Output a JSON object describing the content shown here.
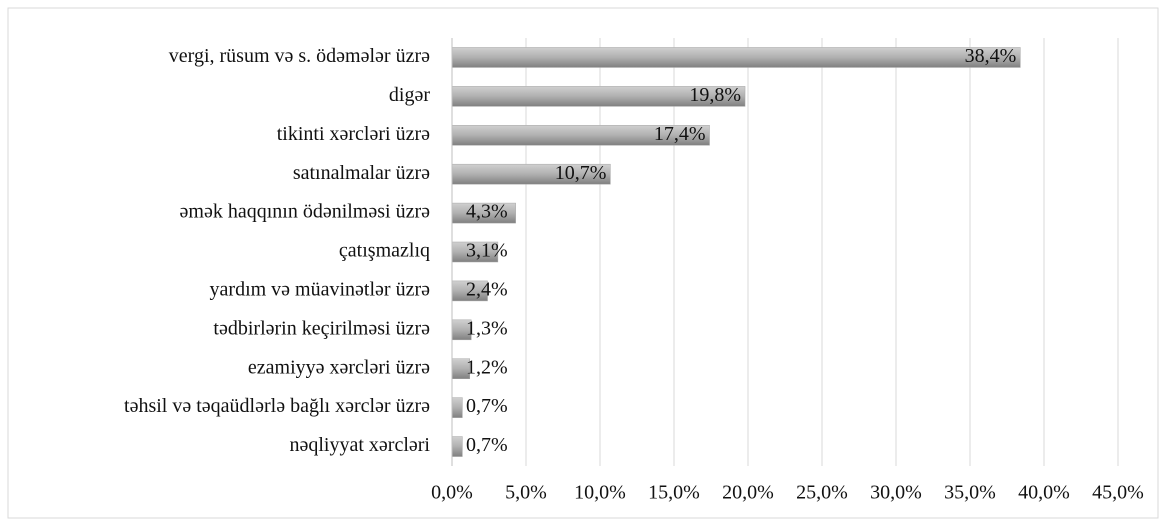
{
  "chart_data": {
    "type": "bar",
    "orientation": "horizontal",
    "categories": [
      "vergi, rüsum və s. ödəmələr üzrə",
      "digər",
      "tikinti xərcləri üzrə",
      "satınalmalar üzrə",
      "əmək haqqının ödənilməsi üzrə",
      "çatışmazlıq",
      "yardım və müavinətlər üzrə",
      "tədbirlərin keçirilməsi üzrə",
      "ezamiyyə xərcləri üzrə",
      "təhsil və təqaüdlərlə bağlı xərclər üzrə",
      "nəqliyyat xərcləri"
    ],
    "values": [
      38.4,
      19.8,
      17.4,
      10.7,
      4.3,
      3.1,
      2.4,
      1.3,
      1.2,
      0.7,
      0.7
    ],
    "value_labels": [
      "38,4%",
      "19,8%",
      "17,4%",
      "10,7%",
      "4,3%",
      "3,1%",
      "2,4%",
      "1,3%",
      "1,2%",
      "0,7%",
      "0,7%"
    ],
    "color": "#a6a6a6",
    "xlim": [
      0,
      45
    ],
    "xticks": [
      {
        "value": 0,
        "label": "0,0%"
      },
      {
        "value": 5,
        "label": "5,0%"
      },
      {
        "value": 10,
        "label": "10,0%"
      },
      {
        "value": 15,
        "label": "15,0%"
      },
      {
        "value": 20,
        "label": "20,0%"
      },
      {
        "value": 25,
        "label": "25,0%"
      },
      {
        "value": 30,
        "label": "30,0%"
      },
      {
        "value": 35,
        "label": "35,0%"
      },
      {
        "value": 40,
        "label": "40,0%"
      },
      {
        "value": 45,
        "label": "45,0%"
      }
    ],
    "grid": true
  }
}
